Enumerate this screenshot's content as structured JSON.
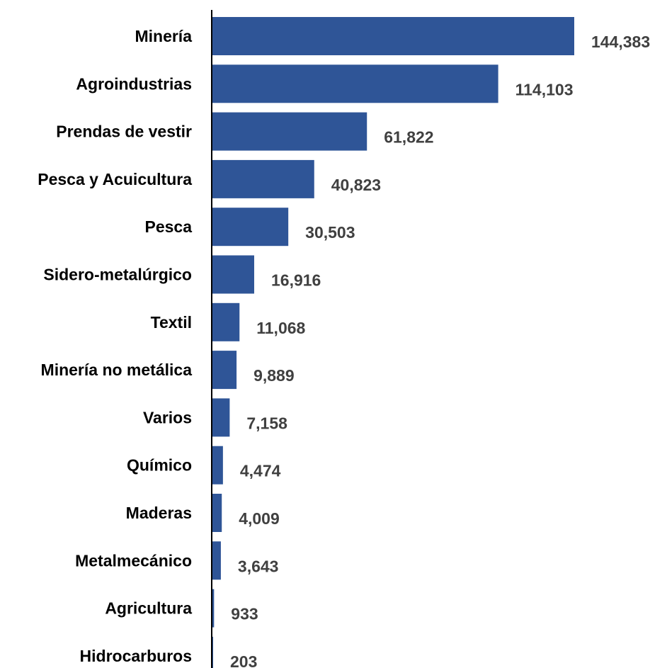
{
  "chart_data": {
    "type": "bar",
    "orientation": "horizontal",
    "categories": [
      "Minería",
      "Agroindustrias",
      "Prendas de vestir",
      "Pesca y Acuicultura",
      "Pesca",
      "Sidero-metalúrgico",
      "Textil",
      "Minería no metálica",
      "Varios",
      "Químico",
      "Maderas",
      "Metalmecánico",
      "Agricultura",
      "Hidrocarburos"
    ],
    "values": [
      144383,
      114103,
      61822,
      40823,
      30503,
      16916,
      11068,
      9889,
      7158,
      4474,
      4009,
      3643,
      933,
      203
    ],
    "value_labels": [
      "144,383",
      "114,103",
      "61,822",
      "40,823",
      "30,503",
      "16,916",
      "11,068",
      "9,889",
      "7,158",
      "4,474",
      "4,009",
      "3,643",
      "933",
      "203"
    ],
    "xlim": [
      0,
      144383
    ],
    "grid": false,
    "bar_color": "#2F5597",
    "axis_color": "#000000",
    "label_color": "#000000",
    "value_label_color": "#404040"
  }
}
